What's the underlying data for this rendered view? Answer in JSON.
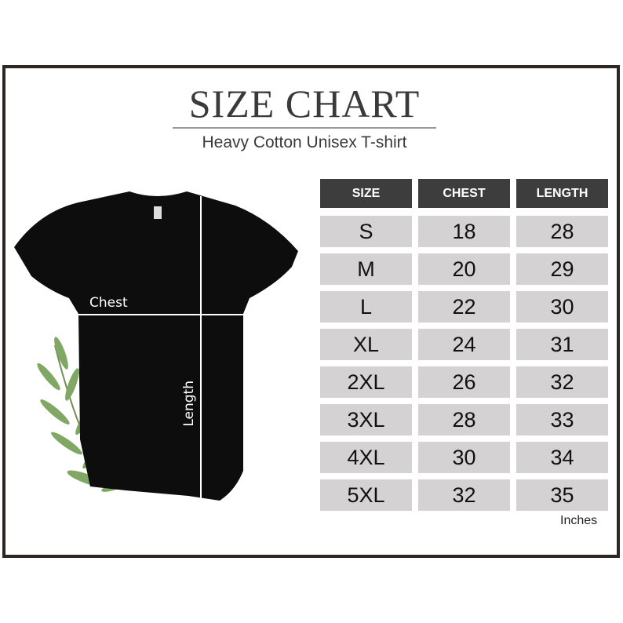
{
  "title": "SIZE CHART",
  "subtitle": "Heavy Cotton Unisex T-shirt",
  "diagram": {
    "chest_label": "Chest",
    "length_label": "Length",
    "shirt_color": "#0d0d0d",
    "leaf_color": "#6a9a4a"
  },
  "table": {
    "headers": [
      "SIZE",
      "CHEST",
      "LENGTH"
    ],
    "rows": [
      [
        "S",
        "18",
        "28"
      ],
      [
        "M",
        "20",
        "29"
      ],
      [
        "L",
        "22",
        "30"
      ],
      [
        "XL",
        "24",
        "31"
      ],
      [
        "2XL",
        "26",
        "32"
      ],
      [
        "3XL",
        "28",
        "33"
      ],
      [
        "4XL",
        "30",
        "34"
      ],
      [
        "5XL",
        "32",
        "35"
      ]
    ],
    "unit": "Inches",
    "header_color": "#3d3d3d",
    "cell_color": "#d4d2d3"
  }
}
